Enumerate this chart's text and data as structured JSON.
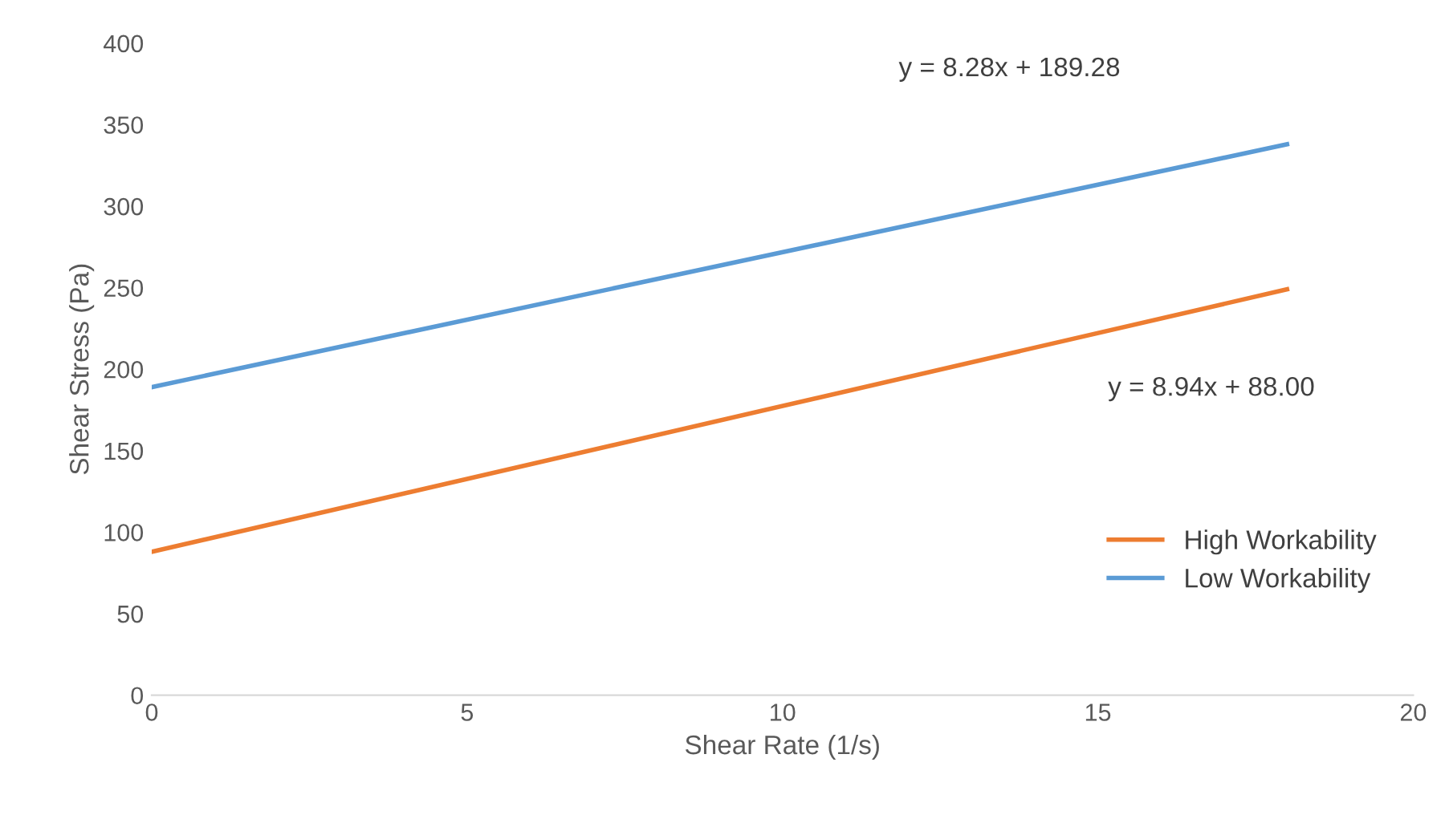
{
  "chart_data": {
    "type": "line",
    "xlabel": "Shear Rate (1/s)",
    "ylabel": "Shear Stress (Pa)",
    "xlim": [
      0,
      20
    ],
    "xticks": [
      0,
      5,
      10,
      15,
      20
    ],
    "ylim": [
      0,
      400
    ],
    "yticks": [
      0,
      50,
      100,
      150,
      200,
      250,
      300,
      350,
      400
    ],
    "x": [
      0,
      18
    ],
    "series": [
      {
        "name": "High Workability",
        "color": "#ed7d31",
        "values": [
          88,
          249
        ]
      },
      {
        "name": "Low Workability",
        "color": "#5b9bd5",
        "values": [
          189,
          338
        ]
      }
    ],
    "annotations": [
      "y = 8.28x + 189.28",
      "y = 8.94x + 88.00"
    ],
    "legend": "lower right",
    "grid": false,
    "marker": "none",
    "line_style": "solid"
  }
}
